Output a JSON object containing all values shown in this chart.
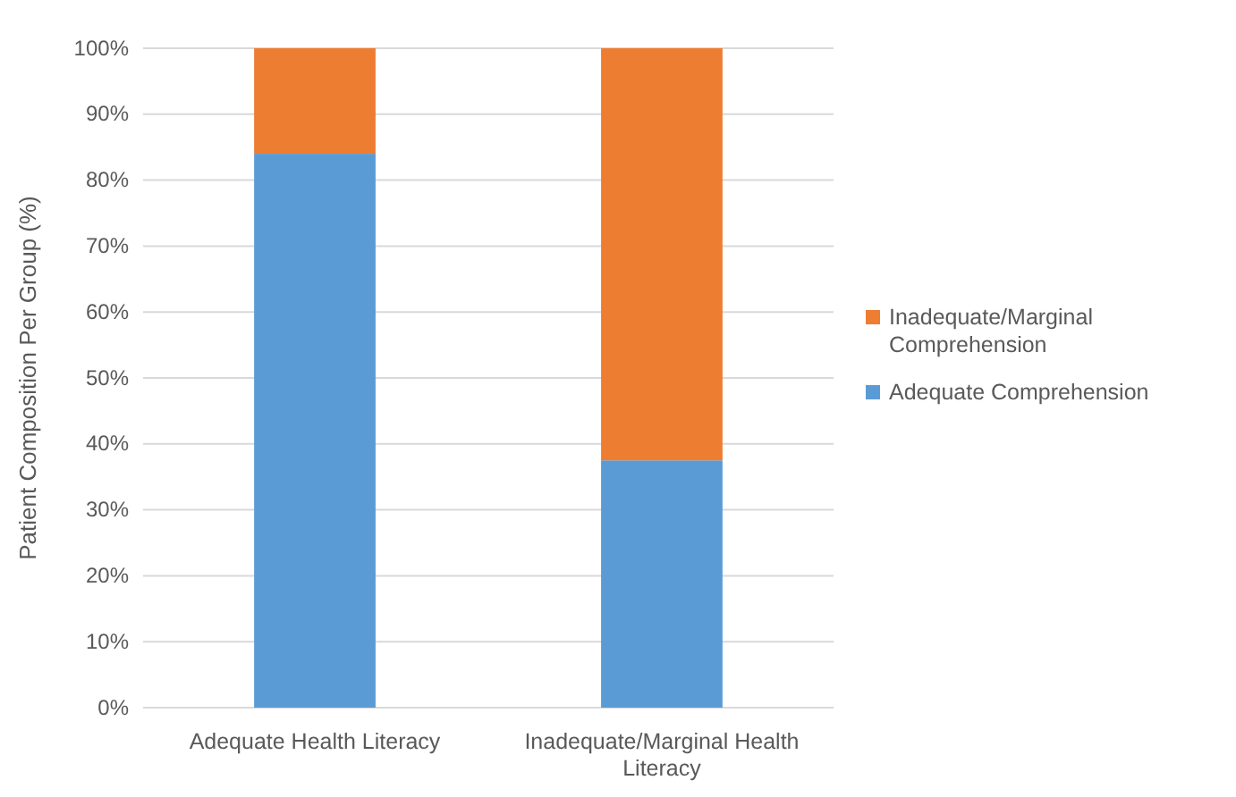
{
  "chart_data": {
    "type": "bar",
    "stacked": true,
    "ylabel": "Patient Composition Per Group (%)",
    "categories": [
      "Adequate Health Literacy",
      "Inadequate/Marginal Health Literacy"
    ],
    "series": [
      {
        "name": "Adequate Comprehension",
        "color": "#5b9bd5",
        "values": [
          84,
          37.5
        ]
      },
      {
        "name": "Inadequate/Marginal Comprehension",
        "color": "#ed7d31",
        "values": [
          16,
          62.5
        ]
      }
    ],
    "ylim": [
      0,
      100
    ],
    "yticks": [
      {
        "value": 0,
        "label": "0%"
      },
      {
        "value": 10,
        "label": "10%"
      },
      {
        "value": 20,
        "label": "20%"
      },
      {
        "value": 30,
        "label": "30%"
      },
      {
        "value": 40,
        "label": "40%"
      },
      {
        "value": 50,
        "label": "50%"
      },
      {
        "value": 60,
        "label": "60%"
      },
      {
        "value": 70,
        "label": "70%"
      },
      {
        "value": 80,
        "label": "80%"
      },
      {
        "value": 90,
        "label": "90%"
      },
      {
        "value": 100,
        "label": "100%"
      }
    ],
    "grid": "y",
    "legend": "right"
  }
}
